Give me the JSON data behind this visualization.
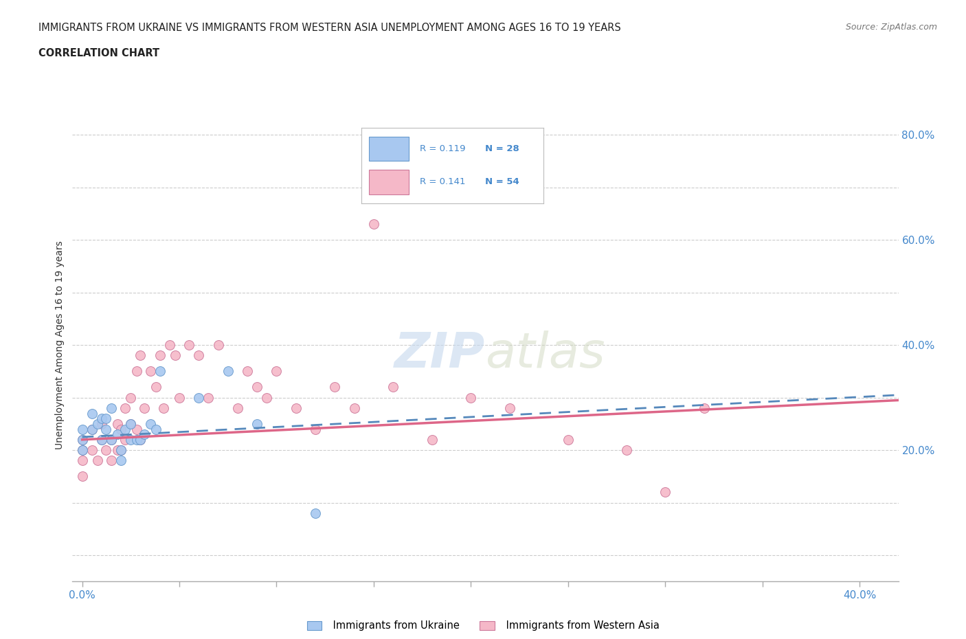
{
  "title_line1": "IMMIGRANTS FROM UKRAINE VS IMMIGRANTS FROM WESTERN ASIA UNEMPLOYMENT AMONG AGES 16 TO 19 YEARS",
  "title_line2": "CORRELATION CHART",
  "source_text": "Source: ZipAtlas.com",
  "ylabel": "Unemployment Among Ages 16 to 19 years",
  "xlim": [
    -0.005,
    0.42
  ],
  "ylim": [
    -0.05,
    0.85
  ],
  "xtick_labels_outer": [
    "0.0%",
    "40.0%"
  ],
  "xtick_vals_outer": [
    0.0,
    0.4
  ],
  "xtick_minor_vals": [
    0.05,
    0.1,
    0.15,
    0.2,
    0.25,
    0.3,
    0.35
  ],
  "ytick_labels": [
    "20.0%",
    "40.0%",
    "60.0%",
    "80.0%"
  ],
  "ytick_vals": [
    0.2,
    0.4,
    0.6,
    0.8
  ],
  "ukraine_color": "#a8c8f0",
  "ukraine_edge_color": "#6699cc",
  "ukraine_line_color": "#5588bb",
  "western_asia_color": "#f5b8c8",
  "western_asia_edge_color": "#cc7799",
  "western_asia_line_color": "#dd6688",
  "ukraine_R": 0.119,
  "ukraine_N": 28,
  "western_asia_R": 0.141,
  "western_asia_N": 54,
  "ukraine_scatter_x": [
    0.0,
    0.0,
    0.0,
    0.005,
    0.005,
    0.008,
    0.01,
    0.01,
    0.012,
    0.012,
    0.015,
    0.015,
    0.018,
    0.02,
    0.02,
    0.022,
    0.025,
    0.025,
    0.028,
    0.03,
    0.032,
    0.035,
    0.038,
    0.04,
    0.06,
    0.075,
    0.09,
    0.12
  ],
  "ukraine_scatter_y": [
    0.2,
    0.22,
    0.24,
    0.24,
    0.27,
    0.25,
    0.26,
    0.22,
    0.24,
    0.26,
    0.22,
    0.28,
    0.23,
    0.18,
    0.2,
    0.24,
    0.22,
    0.25,
    0.22,
    0.22,
    0.23,
    0.25,
    0.24,
    0.35,
    0.3,
    0.35,
    0.25,
    0.08
  ],
  "western_asia_scatter_x": [
    0.0,
    0.0,
    0.0,
    0.0,
    0.005,
    0.005,
    0.008,
    0.01,
    0.01,
    0.012,
    0.015,
    0.015,
    0.018,
    0.018,
    0.02,
    0.02,
    0.022,
    0.022,
    0.025,
    0.025,
    0.028,
    0.028,
    0.03,
    0.03,
    0.032,
    0.035,
    0.038,
    0.04,
    0.042,
    0.045,
    0.048,
    0.05,
    0.055,
    0.06,
    0.065,
    0.07,
    0.08,
    0.085,
    0.09,
    0.095,
    0.1,
    0.11,
    0.12,
    0.13,
    0.14,
    0.15,
    0.16,
    0.18,
    0.2,
    0.22,
    0.25,
    0.28,
    0.3,
    0.32
  ],
  "western_asia_scatter_y": [
    0.15,
    0.18,
    0.2,
    0.22,
    0.2,
    0.24,
    0.18,
    0.22,
    0.25,
    0.2,
    0.18,
    0.22,
    0.2,
    0.25,
    0.2,
    0.24,
    0.22,
    0.28,
    0.25,
    0.3,
    0.24,
    0.35,
    0.22,
    0.38,
    0.28,
    0.35,
    0.32,
    0.38,
    0.28,
    0.4,
    0.38,
    0.3,
    0.4,
    0.38,
    0.3,
    0.4,
    0.28,
    0.35,
    0.32,
    0.3,
    0.35,
    0.28,
    0.24,
    0.32,
    0.28,
    0.63,
    0.32,
    0.22,
    0.3,
    0.28,
    0.22,
    0.2,
    0.12,
    0.28
  ],
  "watermark_text_zip": "ZIP",
  "watermark_text_atlas": "atlas",
  "background_color": "#ffffff",
  "grid_color": "#cccccc",
  "legend_color": "#4488cc",
  "right_axis_color": "#4488cc",
  "marker_size": 100,
  "trendline_ukraine_x0": 0.0,
  "trendline_ukraine_x1": 0.42,
  "trendline_ukraine_y0": 0.225,
  "trendline_ukraine_y1": 0.305,
  "trendline_wa_x0": 0.0,
  "trendline_wa_x1": 0.42,
  "trendline_wa_y0": 0.22,
  "trendline_wa_y1": 0.295
}
